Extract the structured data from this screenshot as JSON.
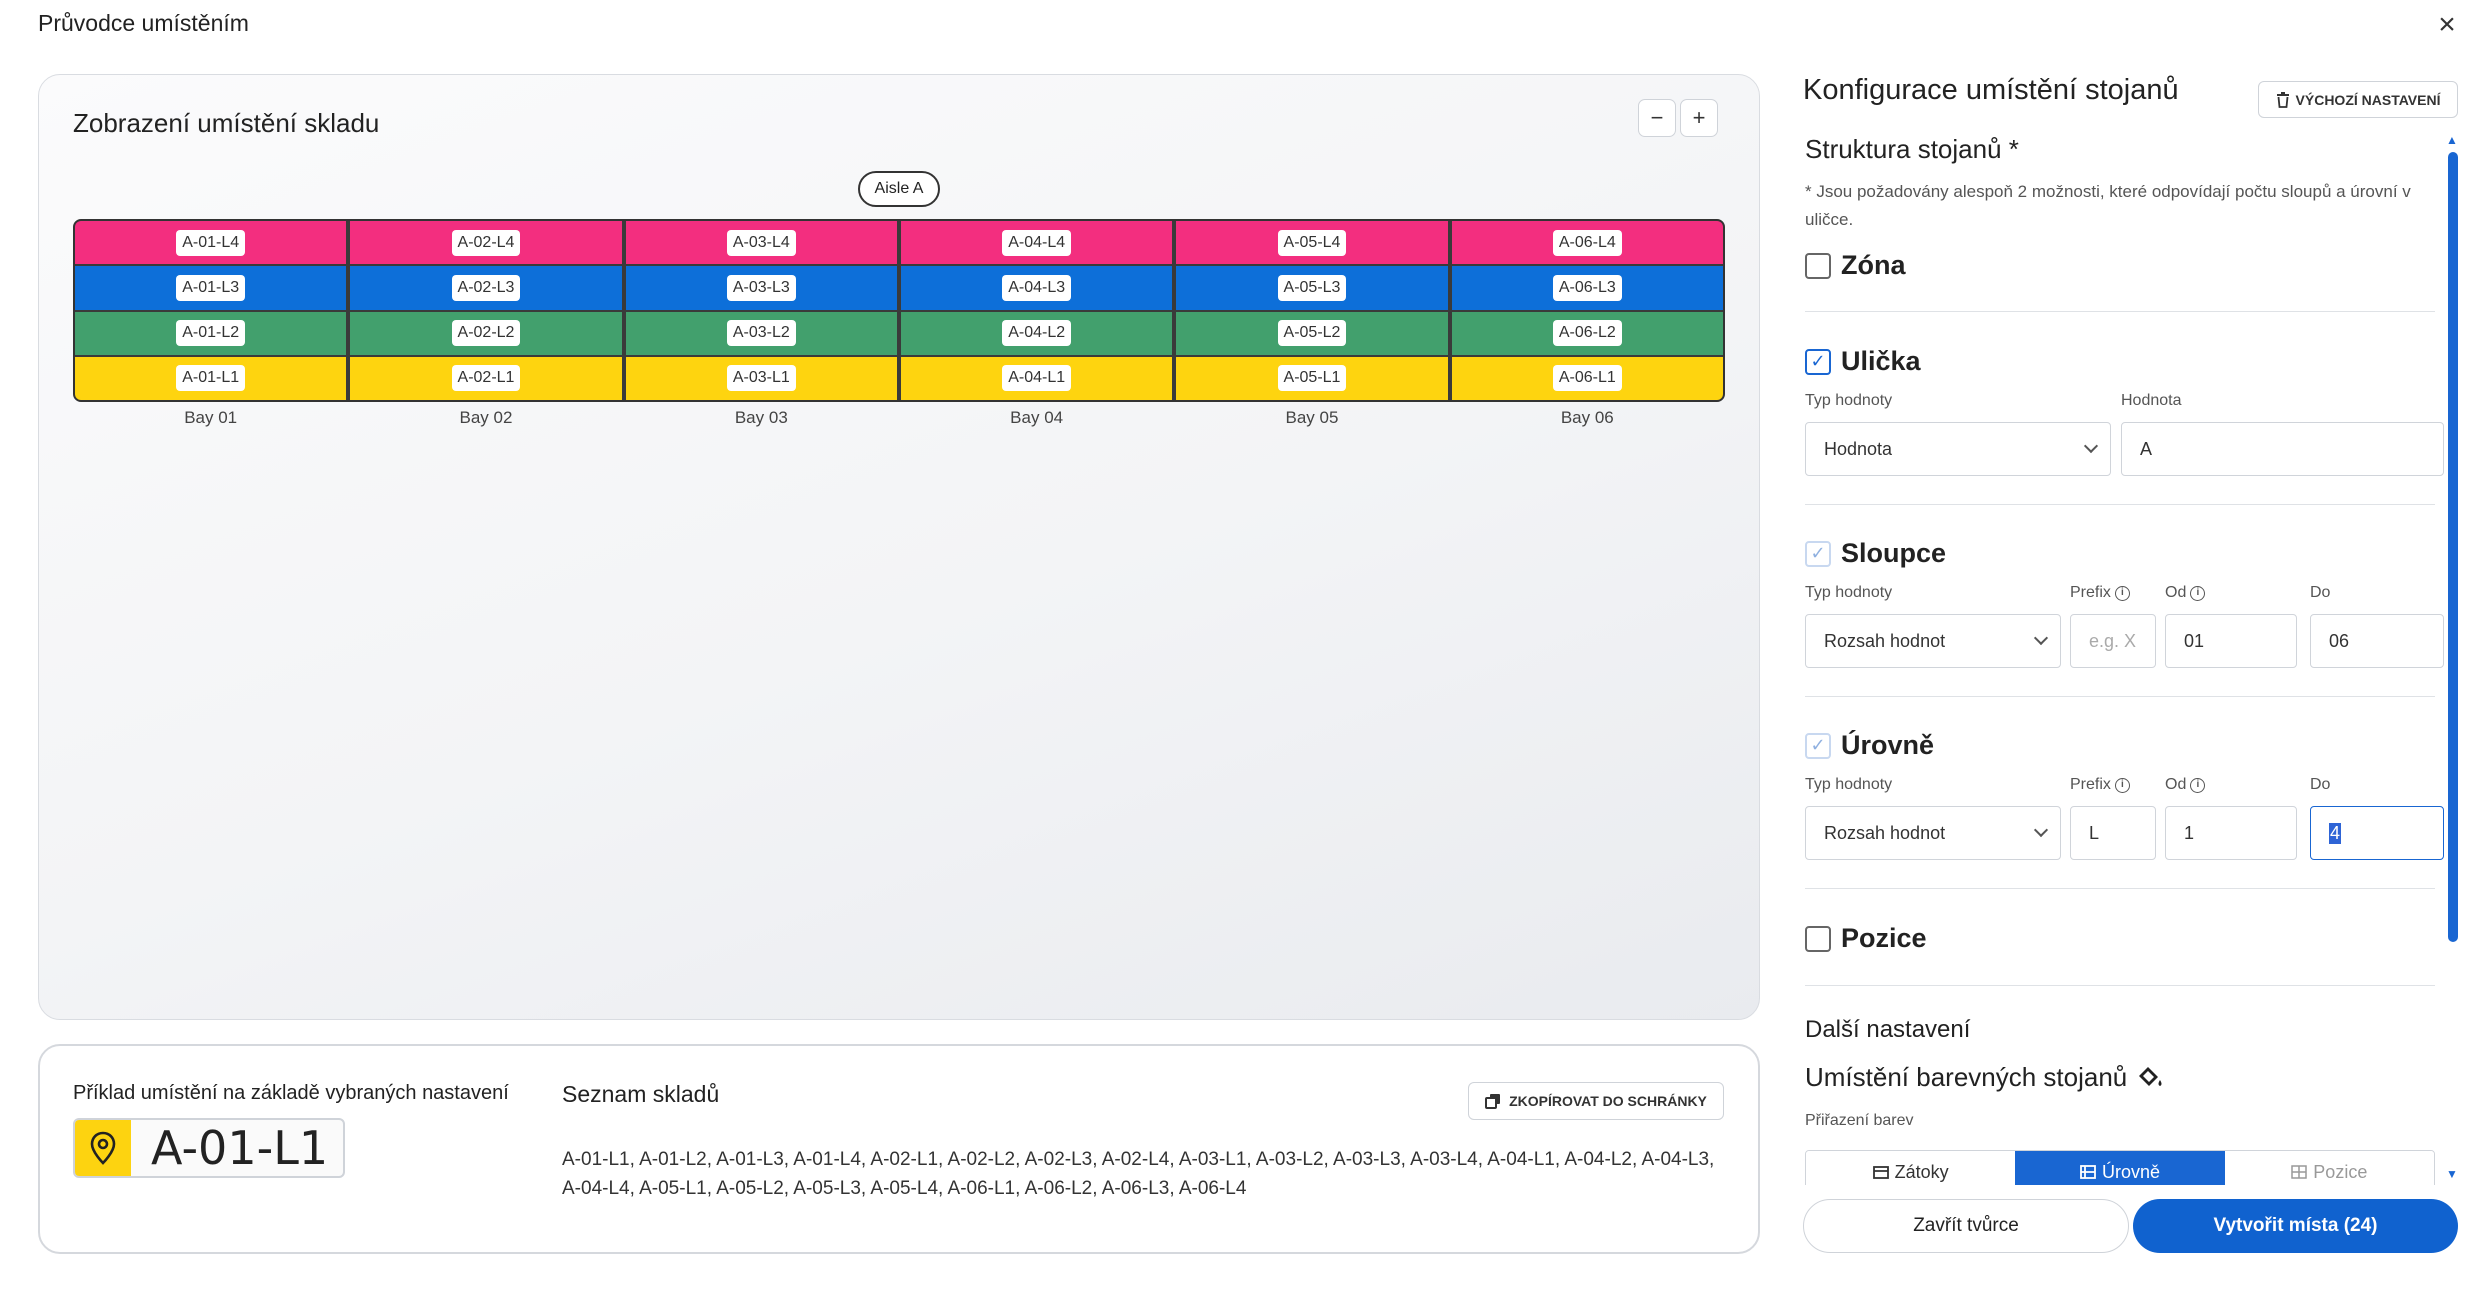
{
  "header": {
    "title": "Průvodce umístěním",
    "close_icon": "close-icon"
  },
  "map": {
    "title": "Zobrazení umístění skladu",
    "zoom_out": "−",
    "zoom_in": "+",
    "aisle": "Aisle A",
    "level_colors": {
      "L4": "#f32e7f",
      "L3": "#0d6fd9",
      "L2": "#42a06d",
      "L1": "#fed40f"
    },
    "bays": [
      {
        "label": "Bay 01",
        "cells": [
          "A-01-L4",
          "A-01-L3",
          "A-01-L2",
          "A-01-L1"
        ]
      },
      {
        "label": "Bay 02",
        "cells": [
          "A-02-L4",
          "A-02-L3",
          "A-02-L2",
          "A-02-L1"
        ]
      },
      {
        "label": "Bay 03",
        "cells": [
          "A-03-L4",
          "A-03-L3",
          "A-03-L2",
          "A-03-L1"
        ]
      },
      {
        "label": "Bay 04",
        "cells": [
          "A-04-L4",
          "A-04-L3",
          "A-04-L2",
          "A-04-L1"
        ]
      },
      {
        "label": "Bay 05",
        "cells": [
          "A-05-L4",
          "A-05-L3",
          "A-05-L2",
          "A-05-L1"
        ]
      },
      {
        "label": "Bay 06",
        "cells": [
          "A-06-L4",
          "A-06-L3",
          "A-06-L2",
          "A-06-L1"
        ]
      }
    ]
  },
  "example": {
    "label": "Příklad umístění na základě vybraných nastavení",
    "value": "A-01-L1",
    "icon": "map-pin-icon",
    "list_title": "Seznam skladů",
    "copy_label": "ZKOPÍROVAT DO SCHRÁNKY",
    "list_text": "A-01-L1, A-01-L2, A-01-L3, A-01-L4, A-02-L1, A-02-L2, A-02-L3, A-02-L4, A-03-L1, A-03-L2, A-03-L3, A-03-L4, A-04-L1, A-04-L2, A-04-L3, A-04-L4, A-05-L1, A-05-L2, A-05-L3, A-05-L4, A-06-L1, A-06-L2, A-06-L3, A-06-L4"
  },
  "config": {
    "title": "Konfigurace umístění stojanů",
    "reset_label": "VÝCHOZÍ NASTAVENÍ",
    "structure_title": "Struktura stojanů *",
    "structure_hint": "* Jsou požadovány alespoň 2 možnosti, které odpovídají počtu sloupů a úrovní v uličce.",
    "zone": {
      "label": "Zóna",
      "checked": false
    },
    "aisle": {
      "label": "Ulička",
      "checked": true,
      "type_label": "Typ hodnoty",
      "type_value": "Hodnota",
      "value_label": "Hodnota",
      "value": "A"
    },
    "columns": {
      "label": "Sloupce",
      "checked": true,
      "type_label": "Typ hodnoty",
      "type_value": "Rozsah hodnot",
      "prefix_label": "Prefix",
      "prefix_placeholder": "e.g. X",
      "from_label": "Od",
      "from": "01",
      "to_label": "Do",
      "to": "06"
    },
    "levels": {
      "label": "Úrovně",
      "checked": true,
      "type_label": "Typ hodnoty",
      "type_value": "Rozsah hodnot",
      "prefix_label": "Prefix",
      "prefix": "L",
      "from_label": "Od",
      "from": "1",
      "to_label": "Do",
      "to": "4"
    },
    "positions": {
      "label": "Pozice",
      "checked": false
    },
    "more_title": "Další nastavení",
    "color_title": "Umístění barevných stojanů",
    "color_icon": "paint-bucket-icon",
    "color_assign_label": "Přiřazení barev",
    "tabs": [
      {
        "label": "Zátoky",
        "icon": "calendar-icon",
        "state": "normal"
      },
      {
        "label": "Úrovně",
        "icon": "levels-icon",
        "state": "active"
      },
      {
        "label": "Pozice",
        "icon": "grid-icon",
        "state": "disabled"
      }
    ]
  },
  "footer": {
    "close_label": "Zavřít tvůrce",
    "create_label": "Vytvořit místa (24)"
  }
}
